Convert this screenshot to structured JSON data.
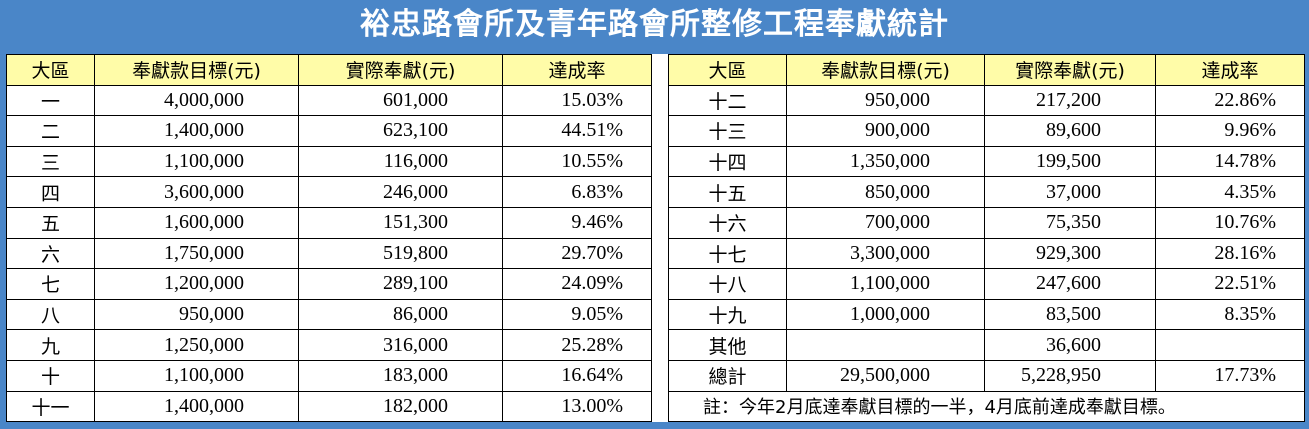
{
  "title": "裕忠路會所及青年路會所整修工程奉獻統計",
  "headers": [
    "大區",
    "奉獻款目標(元)",
    "實際奉獻(元)",
    "達成率"
  ],
  "left_rows": [
    {
      "region": "一",
      "target": "4,000,000",
      "actual": "601,000",
      "rate": "15.03%"
    },
    {
      "region": "二",
      "target": "1,400,000",
      "actual": "623,100",
      "rate": "44.51%"
    },
    {
      "region": "三",
      "target": "1,100,000",
      "actual": "116,000",
      "rate": "10.55%"
    },
    {
      "region": "四",
      "target": "3,600,000",
      "actual": "246,000",
      "rate": "6.83%"
    },
    {
      "region": "五",
      "target": "1,600,000",
      "actual": "151,300",
      "rate": "9.46%"
    },
    {
      "region": "六",
      "target": "1,750,000",
      "actual": "519,800",
      "rate": "29.70%"
    },
    {
      "region": "七",
      "target": "1,200,000",
      "actual": "289,100",
      "rate": "24.09%"
    },
    {
      "region": "八",
      "target": "950,000",
      "actual": "86,000",
      "rate": "9.05%"
    },
    {
      "region": "九",
      "target": "1,250,000",
      "actual": "316,000",
      "rate": "25.28%"
    },
    {
      "region": "十",
      "target": "1,100,000",
      "actual": "183,000",
      "rate": "16.64%"
    },
    {
      "region": "十一",
      "target": "1,400,000",
      "actual": "182,000",
      "rate": "13.00%"
    }
  ],
  "right_rows": [
    {
      "region": "十二",
      "target": "950,000",
      "actual": "217,200",
      "rate": "22.86%"
    },
    {
      "region": "十三",
      "target": "900,000",
      "actual": "89,600",
      "rate": "9.96%"
    },
    {
      "region": "十四",
      "target": "1,350,000",
      "actual": "199,500",
      "rate": "14.78%"
    },
    {
      "region": "十五",
      "target": "850,000",
      "actual": "37,000",
      "rate": "4.35%"
    },
    {
      "region": "十六",
      "target": "700,000",
      "actual": "75,350",
      "rate": "10.76%"
    },
    {
      "region": "十七",
      "target": "3,300,000",
      "actual": "929,300",
      "rate": "28.16%"
    },
    {
      "region": "十八",
      "target": "1,100,000",
      "actual": "247,600",
      "rate": "22.51%"
    },
    {
      "region": "十九",
      "target": "1,000,000",
      "actual": "83,500",
      "rate": "8.35%"
    },
    {
      "region": "其他",
      "target": "",
      "actual": "36,600",
      "rate": ""
    },
    {
      "region": "總計",
      "target": "29,500,000",
      "actual": "5,228,950",
      "rate": "17.73%"
    }
  ],
  "note": "註：今年2月底達奉獻目標的一半，4月底前達成奉獻目標。",
  "colors": {
    "title_bg": "#4a86c8",
    "header_bg": "#fffca8",
    "text": "#000000"
  }
}
